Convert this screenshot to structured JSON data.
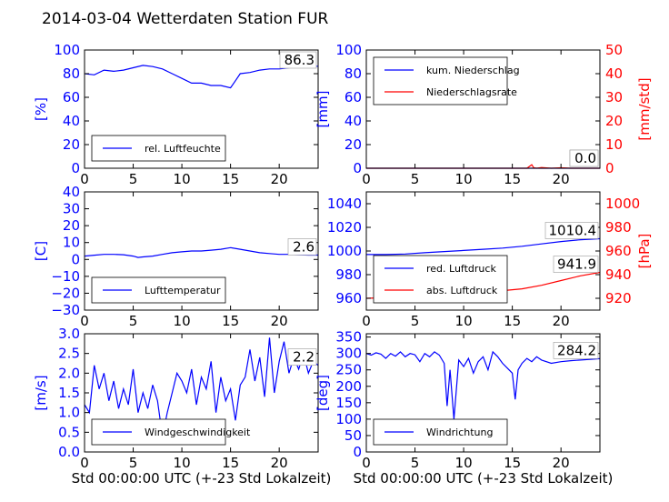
{
  "page": {
    "title": "2014-03-04 Wetterdaten Station FUR"
  },
  "colors": {
    "primary": "#0000ff",
    "secondary": "#ff0000",
    "axis": "#000000"
  },
  "chart_data": [
    {
      "id": "humidity",
      "type": "line",
      "ylabel": "[%]",
      "ylim": [
        0,
        100
      ],
      "yticks": [
        "0",
        "20",
        "40",
        "60",
        "80",
        "100"
      ],
      "xlim": [
        0,
        24
      ],
      "xticks": [
        "0",
        "5",
        "10",
        "15",
        "20"
      ],
      "legend_position": "lower-left",
      "value_label": "86.3",
      "series": [
        {
          "name": "rel. Luftfeuchte",
          "color": "#0000ff",
          "x": [
            0,
            1,
            2,
            3,
            4,
            5,
            6,
            7,
            8,
            9,
            10,
            11,
            12,
            13,
            14,
            15,
            15.5,
            16,
            17,
            18,
            19,
            20,
            21,
            22,
            23,
            24
          ],
          "y": [
            80,
            79,
            83,
            82,
            83,
            85,
            87,
            86,
            84,
            80,
            76,
            72,
            72,
            70,
            70,
            68,
            74,
            80,
            81,
            83,
            84,
            84,
            85,
            86,
            86,
            86.3
          ]
        }
      ]
    },
    {
      "id": "precipitation",
      "type": "line",
      "ylabel": "[mm]",
      "ylabel_right": "[mm/std]",
      "ylim": [
        0,
        100
      ],
      "ylim_right": [
        0,
        50
      ],
      "yticks": [
        "0",
        "20",
        "40",
        "60",
        "80",
        "100"
      ],
      "yticks_right": [
        "0",
        "10",
        "20",
        "30",
        "40",
        "50"
      ],
      "xlim": [
        0,
        24
      ],
      "xticks": [
        "0",
        "5",
        "10",
        "15",
        "20"
      ],
      "legend_position": "upper-left",
      "value_label": "0.0",
      "value_label_right": "0.0",
      "series": [
        {
          "name": "kum. Niederschlag",
          "color": "#0000ff",
          "axis": "left",
          "x": [
            0,
            24
          ],
          "y": [
            0,
            0
          ]
        },
        {
          "name": "Niederschlagsrate",
          "color": "#ff0000",
          "axis": "right",
          "x": [
            0,
            15,
            16.5,
            17,
            17.2,
            17.5,
            18,
            19,
            20,
            21,
            22,
            24
          ],
          "y": [
            0,
            0,
            0,
            1.5,
            0.2,
            0,
            0.3,
            0,
            0.2,
            0,
            0,
            0
          ]
        }
      ]
    },
    {
      "id": "temperature",
      "type": "line",
      "ylabel": "[C]",
      "ylim": [
        -30,
        40
      ],
      "yticks": [
        "−30",
        "−20",
        "−10",
        "0",
        "10",
        "20",
        "30",
        "40"
      ],
      "xlim": [
        0,
        24
      ],
      "xticks": [
        "0",
        "5",
        "10",
        "15",
        "20"
      ],
      "legend_position": "lower-left",
      "value_label": "2.6",
      "series": [
        {
          "name": "Lufttemperatur",
          "color": "#0000ff",
          "x": [
            0,
            1,
            2,
            3,
            4,
            5,
            5.5,
            6,
            7,
            8,
            9,
            10,
            11,
            12,
            13,
            14,
            15,
            16,
            17,
            18,
            19,
            20,
            21,
            22,
            23,
            24
          ],
          "y": [
            2,
            2.5,
            3,
            3,
            2.8,
            2,
            1.2,
            1.5,
            2,
            3,
            4,
            4.5,
            5,
            5,
            5.5,
            6,
            7,
            6,
            5,
            4,
            3.5,
            3,
            3,
            2.8,
            2.6,
            2.6
          ]
        }
      ]
    },
    {
      "id": "pressure",
      "type": "line",
      "ylabel_right": "[hPa]",
      "ylim": [
        950,
        1050
      ],
      "ylim_right": [
        910,
        1010
      ],
      "yticks": [
        "960",
        "980",
        "1000",
        "1020",
        "1040"
      ],
      "yticks_right": [
        "920",
        "940",
        "960",
        "980",
        "1000"
      ],
      "xlim": [
        0,
        24
      ],
      "xticks": [
        "0",
        "5",
        "10",
        "15",
        "20"
      ],
      "legend_position": "lower-left",
      "value_label": "1010.4",
      "value_label_right": "941.9",
      "series": [
        {
          "name": "red. Luftdruck",
          "color": "#0000ff",
          "axis": "left",
          "x": [
            0,
            2,
            4,
            6,
            8,
            10,
            12,
            14,
            16,
            18,
            20,
            22,
            24
          ],
          "y": [
            997,
            997,
            997.5,
            998.5,
            999.5,
            1000.5,
            1001.5,
            1002.5,
            1004,
            1006,
            1008,
            1009.5,
            1010.4
          ]
        },
        {
          "name": "abs. Luftdruck",
          "color": "#ff0000",
          "axis": "right",
          "x": [
            0,
            2,
            4,
            6,
            8,
            10,
            12,
            14,
            16,
            18,
            20,
            22,
            24
          ],
          "y": [
            920,
            920.5,
            921,
            922,
            923,
            924,
            925,
            926.5,
            928,
            931,
            935,
            939,
            941.9
          ]
        }
      ]
    },
    {
      "id": "windspeed",
      "type": "line",
      "ylabel": "[m/s]",
      "ylim": [
        0,
        3.0
      ],
      "yticks": [
        "0.0",
        "0.5",
        "1.0",
        "1.5",
        "2.0",
        "2.5",
        "3.0"
      ],
      "xlim": [
        0,
        24
      ],
      "xticks": [
        "0",
        "5",
        "10",
        "15",
        "20"
      ],
      "xlabel": "Std 00:00:00 UTC (+-23 Std Lokalzeit)",
      "legend_position": "lower-left",
      "value_label": "2.2",
      "series": [
        {
          "name": "Windgeschwindigkeit",
          "color": "#0000ff",
          "x": [
            0,
            0.5,
            1,
            1.5,
            2,
            2.5,
            3,
            3.5,
            4,
            4.5,
            5,
            5.5,
            6,
            6.5,
            7,
            7.5,
            8,
            8.5,
            9,
            9.5,
            10,
            10.5,
            11,
            11.5,
            12,
            12.5,
            13,
            13.5,
            14,
            14.5,
            15,
            15.5,
            16,
            16.5,
            17,
            17.5,
            18,
            18.5,
            19,
            19.5,
            20,
            20.5,
            21,
            21.5,
            22,
            22.5,
            23,
            23.5,
            24
          ],
          "y": [
            1.2,
            1.0,
            2.2,
            1.6,
            2.0,
            1.3,
            1.8,
            1.1,
            1.6,
            1.2,
            2.1,
            1.0,
            1.5,
            1.1,
            1.7,
            1.3,
            0.4,
            1.0,
            1.5,
            2.0,
            1.8,
            1.5,
            2.1,
            1.2,
            1.9,
            1.6,
            2.3,
            1.0,
            1.9,
            1.3,
            1.6,
            0.8,
            1.7,
            1.9,
            2.6,
            1.8,
            2.4,
            1.4,
            2.9,
            1.5,
            2.3,
            2.8,
            2.0,
            2.4,
            2.1,
            2.5,
            2.0,
            2.3,
            2.2
          ]
        }
      ]
    },
    {
      "id": "winddirection",
      "type": "line",
      "ylabel": "[deg]",
      "ylim": [
        0,
        360
      ],
      "yticks": [
        "0",
        "50",
        "100",
        "150",
        "200",
        "250",
        "300",
        "350"
      ],
      "xlim": [
        0,
        24
      ],
      "xticks": [
        "0",
        "5",
        "10",
        "15",
        "20"
      ],
      "xlabel": "Std 00:00:00 UTC (+-23 Std Lokalzeit)",
      "legend_position": "lower-left",
      "value_label": "284.2",
      "series": [
        {
          "name": "Windrichtung",
          "color": "#0000ff",
          "x": [
            0,
            0.5,
            1,
            1.5,
            2,
            2.5,
            3,
            3.5,
            4,
            4.5,
            5,
            5.5,
            6,
            6.5,
            7,
            7.5,
            8,
            8.3,
            8.6,
            9,
            9.5,
            10,
            10.5,
            11,
            11.5,
            12,
            12.5,
            13,
            13.5,
            14,
            14.5,
            15,
            15.3,
            15.6,
            16,
            16.5,
            17,
            17.5,
            18,
            19,
            20,
            21,
            22,
            23,
            24
          ],
          "y": [
            300,
            295,
            302,
            298,
            285,
            300,
            292,
            305,
            290,
            300,
            296,
            275,
            300,
            290,
            305,
            295,
            270,
            140,
            250,
            100,
            280,
            260,
            285,
            240,
            275,
            290,
            250,
            305,
            290,
            270,
            255,
            240,
            160,
            250,
            270,
            285,
            275,
            290,
            280,
            270,
            275,
            278,
            280,
            282,
            284.2
          ]
        }
      ]
    }
  ]
}
